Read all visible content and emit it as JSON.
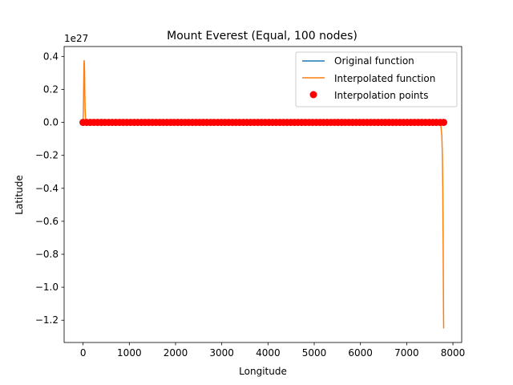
{
  "chart_data": {
    "type": "line",
    "title": "Mount Everest (Equal, 100 nodes)",
    "xlabel": "Longitude",
    "ylabel": "Latitude",
    "y_multiplier": "1e27",
    "xlim": [
      -410,
      8190
    ],
    "ylim": [
      -1.335,
      0.46
    ],
    "xticks": [
      0,
      1000,
      2000,
      3000,
      4000,
      5000,
      6000,
      7000,
      8000
    ],
    "yticks": [
      -1.2,
      -1.0,
      -0.8,
      -0.6,
      -0.4,
      -0.2,
      0.0,
      0.2,
      0.4
    ],
    "ytick_labels": [
      "−1.2",
      "−1.0",
      "−0.8",
      "−0.6",
      "−0.4",
      "−0.2",
      "0.0",
      "0.2",
      "0.4"
    ],
    "grid": false,
    "legend_position": "top-right",
    "series": [
      {
        "name": "Original function",
        "kind": "line",
        "color": "#1f77b4",
        "x": [
          0,
          7800
        ],
        "y": [
          0,
          0
        ]
      },
      {
        "name": "Interpolated function",
        "kind": "line",
        "color": "#ff7f0e",
        "x": [
          0,
          5,
          10,
          15,
          20,
          25,
          30,
          38,
          45,
          55,
          70,
          90,
          120,
          200,
          500,
          1000,
          3000,
          5000,
          7000,
          7500,
          7700,
          7740,
          7760,
          7772,
          7780,
          7786,
          7791,
          7795,
          7798,
          7800
        ],
        "y": [
          0,
          0.05,
          0.14,
          0.26,
          0.36,
          0.375,
          0.33,
          0.18,
          0.08,
          0.02,
          0,
          0,
          0,
          0,
          0,
          0,
          0,
          0,
          0,
          0,
          0,
          -0.02,
          -0.08,
          -0.2,
          -0.4,
          -0.62,
          -0.85,
          -1.05,
          -1.2,
          -1.25
        ]
      },
      {
        "name": "Interpolation points",
        "kind": "scatter",
        "color": "#ff0000",
        "count": 100,
        "x_start": 0,
        "x_end": 7800,
        "y": 0
      }
    ]
  }
}
